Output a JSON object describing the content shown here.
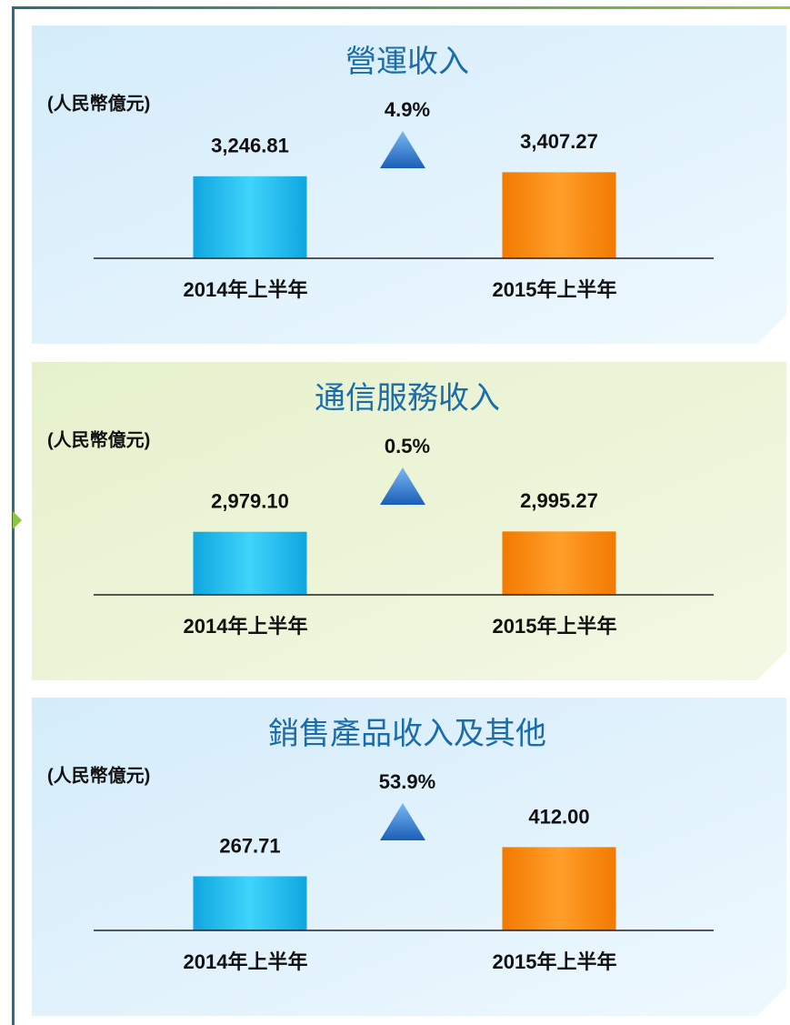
{
  "chart_data": [
    {
      "type": "bar",
      "title": "營運收入",
      "unit_label": "(人民幣億元)",
      "annotation": "4.9%",
      "categories": [
        "2014年上半年",
        "2015年上半年"
      ],
      "values": [
        3246.81,
        3407.27
      ],
      "value_labels": [
        "3,246.81",
        "3,407.27"
      ],
      "colors": [
        "#19c3f3",
        "#fa8a0a"
      ],
      "ylim": [
        0,
        3600
      ]
    },
    {
      "type": "bar",
      "title": "通信服務收入",
      "unit_label": "(人民幣億元)",
      "annotation": "0.5%",
      "categories": [
        "2014年上半年",
        "2015年上半年"
      ],
      "values": [
        2979.1,
        2995.27
      ],
      "value_labels": [
        "2,979.10",
        "2,995.27"
      ],
      "colors": [
        "#19c3f3",
        "#fa8a0a"
      ],
      "ylim": [
        0,
        4300
      ]
    },
    {
      "type": "bar",
      "title": "銷售產品收入及其他",
      "unit_label": "(人民幣億元)",
      "annotation": "53.9%",
      "categories": [
        "2014年上半年",
        "2015年上半年"
      ],
      "values": [
        267.71,
        412.0
      ],
      "value_labels": [
        "267.71",
        "412.00"
      ],
      "colors": [
        "#19c3f3",
        "#fa8a0a"
      ],
      "ylim": [
        0,
        450
      ]
    }
  ]
}
